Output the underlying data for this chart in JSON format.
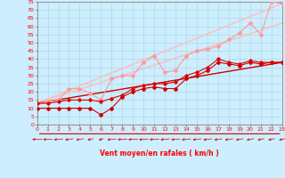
{
  "xlabel": "Vent moyen/en rafales ( km/h )",
  "bg_color": "#cceeff",
  "grid_color": "#aaccdd",
  "axis_color": "#ff0000",
  "xmin": 0,
  "xmax": 23,
  "ymin": 0,
  "ymax": 75,
  "yticks": [
    0,
    5,
    10,
    15,
    20,
    25,
    30,
    35,
    40,
    45,
    50,
    55,
    60,
    65,
    70,
    75
  ],
  "xticks": [
    0,
    1,
    2,
    3,
    4,
    5,
    6,
    7,
    8,
    9,
    10,
    11,
    12,
    13,
    14,
    15,
    16,
    17,
    18,
    19,
    20,
    21,
    22,
    23
  ],
  "lines": [
    {
      "x": [
        0,
        23
      ],
      "y": [
        13,
        74
      ],
      "color": "#ffbbbb",
      "lw": 1.0,
      "marker": null
    },
    {
      "x": [
        0,
        23
      ],
      "y": [
        13,
        62
      ],
      "color": "#ffbbbb",
      "lw": 1.0,
      "marker": null
    },
    {
      "x": [
        0,
        23
      ],
      "y": [
        13,
        38
      ],
      "color": "#cc0000",
      "lw": 1.0,
      "marker": null
    },
    {
      "x": [
        0,
        1,
        2,
        3,
        4,
        5,
        6,
        7,
        8,
        9,
        10,
        11,
        12,
        13,
        14,
        15,
        16,
        17,
        18,
        19,
        20,
        21,
        22,
        23
      ],
      "y": [
        13,
        14,
        15,
        22,
        22,
        19,
        15,
        28,
        30,
        30,
        38,
        42,
        32,
        33,
        42,
        45,
        46,
        48,
        52,
        56,
        62,
        55,
        75,
        74
      ],
      "color": "#ff9999",
      "lw": 0.8,
      "marker": "D",
      "ms": 2.0
    },
    {
      "x": [
        0,
        1,
        2,
        3,
        4,
        5,
        6,
        7,
        8,
        9,
        10,
        11,
        12,
        13,
        14,
        15,
        16,
        17,
        18,
        19,
        20,
        21,
        22,
        23
      ],
      "y": [
        10,
        10,
        10,
        10,
        10,
        10,
        6,
        10,
        17,
        20,
        22,
        23,
        22,
        22,
        28,
        30,
        33,
        38,
        37,
        36,
        38,
        37,
        38,
        38
      ],
      "color": "#cc0000",
      "lw": 0.8,
      "marker": "D",
      "ms": 2.0
    },
    {
      "x": [
        0,
        1,
        2,
        3,
        4,
        5,
        6,
        7,
        8,
        9,
        10,
        11,
        12,
        13,
        14,
        15,
        16,
        17,
        18,
        19,
        20,
        21,
        22,
        23
      ],
      "y": [
        13,
        13,
        14,
        15,
        15,
        15,
        14,
        16,
        18,
        22,
        24,
        25,
        25,
        26,
        30,
        32,
        35,
        40,
        38,
        37,
        39,
        38,
        38,
        38
      ],
      "color": "#dd0000",
      "lw": 0.8,
      "marker": "D",
      "ms": 1.8
    }
  ],
  "arrow_angles": [
    185,
    190,
    200,
    210,
    215,
    225,
    230,
    200,
    195,
    190,
    195,
    195,
    200,
    200,
    200,
    205,
    205,
    210,
    210,
    215,
    215,
    220,
    220,
    220
  ]
}
